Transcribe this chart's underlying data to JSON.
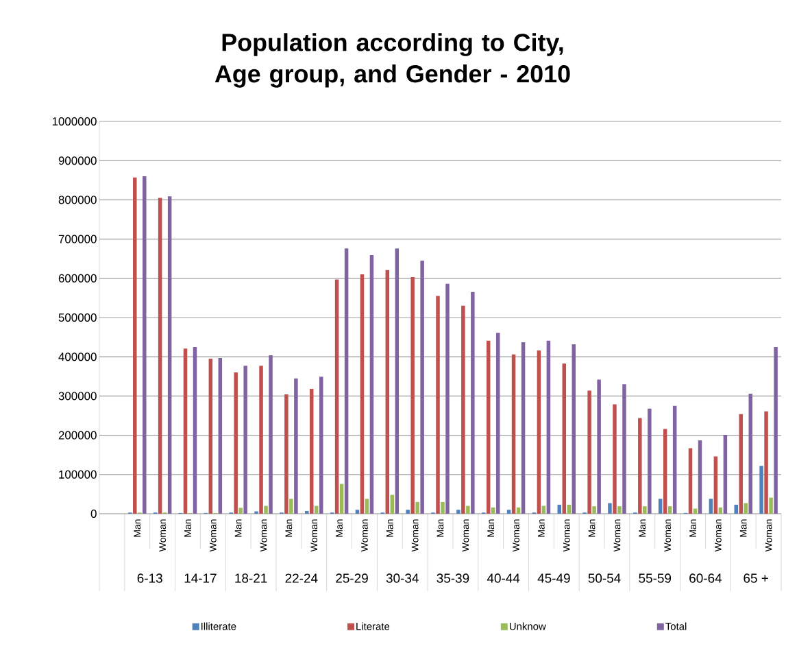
{
  "chart_data": {
    "type": "bar",
    "title": "Population according to City, Age group, and Gender - 2010",
    "categories": [
      null,
      "Man",
      "Woman",
      "Man",
      "Woman",
      "Man",
      "Woman",
      "Man",
      "Woman",
      "Man",
      "Woman",
      "Man",
      "Woman",
      "Man",
      "Woman",
      "Man",
      "Woman",
      "Man",
      "Woman",
      "Man",
      "Woman",
      "Man",
      "Woman",
      "Man",
      "Woman",
      "Man",
      "Woman"
    ],
    "annotations": [
      "6-13",
      "14-17",
      "18-21",
      "22-24",
      "25-29",
      "30-34",
      "35-39",
      "40-44",
      "45-49",
      "50-54",
      "55-59",
      "60-64",
      "65 +"
    ],
    "series": [
      {
        "name": "Illiterate",
        "color": "#4f81bd",
        "values": [
          null,
          3000,
          3000,
          2000,
          2000,
          3000,
          6000,
          3000,
          7000,
          3000,
          10000,
          3000,
          10000,
          3000,
          10000,
          3000,
          10000,
          3000,
          23000,
          3000,
          27000,
          3000,
          38000,
          2000,
          38000,
          23000,
          122000
        ]
      },
      {
        "name": "Literate",
        "color": "#c0504d",
        "values": [
          null,
          857000,
          805000,
          421000,
          395000,
          360000,
          377000,
          304000,
          318000,
          597000,
          610000,
          621000,
          603000,
          555000,
          530000,
          441000,
          406000,
          416000,
          383000,
          314000,
          279000,
          244000,
          216000,
          167000,
          146000,
          254000,
          261000
        ]
      },
      {
        "name": "Unknow",
        "color": "#9bbb59",
        "values": [
          null,
          3000,
          3000,
          2000,
          2000,
          15000,
          20000,
          38000,
          20000,
          76000,
          38000,
          48000,
          30000,
          30000,
          20000,
          16000,
          16000,
          20000,
          23000,
          19000,
          19000,
          19000,
          19000,
          13000,
          16000,
          27000,
          41000
        ]
      },
      {
        "name": "Total",
        "color": "#8064a2",
        "values": [
          null,
          860000,
          809000,
          425000,
          397000,
          377000,
          404000,
          345000,
          349000,
          676000,
          659000,
          676000,
          645000,
          586000,
          565000,
          461000,
          437000,
          441000,
          432000,
          342000,
          330000,
          268000,
          275000,
          187000,
          201000,
          306000,
          425000
        ]
      }
    ],
    "ylim": [
      0,
      1000000
    ],
    "yticks": [
      0,
      100000,
      200000,
      300000,
      400000,
      500000,
      600000,
      700000,
      800000,
      900000,
      1000000
    ],
    "grid": "y",
    "legend": "bottom"
  }
}
